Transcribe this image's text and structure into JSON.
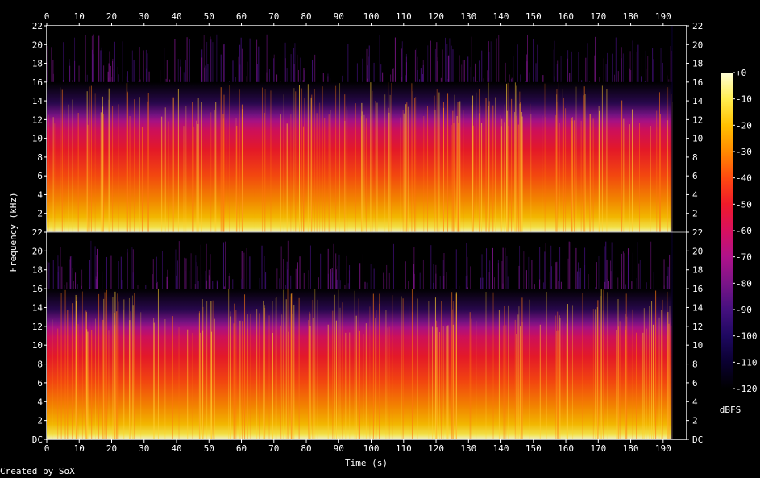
{
  "chart_data": {
    "type": "heatmap",
    "title": "",
    "xlabel": "Time (s)",
    "ylabel": "Frequency (kHz)",
    "xlim": [
      0,
      197
    ],
    "ylim": [
      0,
      22
    ],
    "x_ticks": [
      0,
      10,
      20,
      30,
      40,
      50,
      60,
      70,
      80,
      90,
      100,
      110,
      120,
      130,
      140,
      150,
      160,
      170,
      180,
      190
    ],
    "y_tick_labels": [
      "DC",
      "2",
      "4",
      "6",
      "8",
      "10",
      "12",
      "14",
      "16",
      "18",
      "20",
      "22"
    ],
    "channels": 2,
    "audio_end_s": 193,
    "lowpass_cutoff_khz": 16,
    "colorbar": {
      "label": "dBFS",
      "range": [
        -120,
        0
      ],
      "tick_labels": [
        "+0",
        "-10",
        "-20",
        "-30",
        "-40",
        "-50",
        "-60",
        "-70",
        "-80",
        "-90",
        "-100",
        "-110",
        "-120"
      ],
      "colors": [
        "#000000",
        "#0a0030",
        "#1e0860",
        "#45107f",
        "#7a1488",
        "#b0128a",
        "#d8105f",
        "#f01a2a",
        "#ff4a10",
        "#ff8a00",
        "#ffc000",
        "#ffee50",
        "#ffffd8"
      ]
    }
  },
  "footer": {
    "credit": "Created by SoX"
  }
}
